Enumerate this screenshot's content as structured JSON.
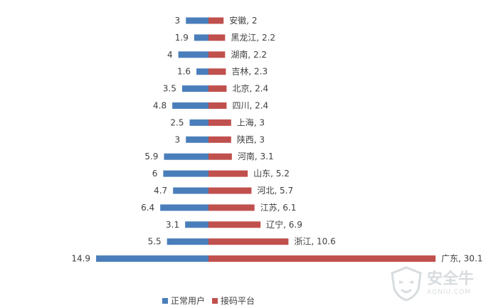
{
  "chart_data": {
    "type": "bar",
    "orientation": "horizontal-diverging",
    "categories": [
      "安徽",
      "黑龙江",
      "湖南",
      "吉林",
      "北京",
      "四川",
      "上海",
      "陕西",
      "河南",
      "山东",
      "河北",
      "江苏",
      "辽宁",
      "浙江",
      "广东"
    ],
    "series": [
      {
        "name": "正常用户",
        "values": [
          3,
          1.9,
          4,
          1.6,
          3.5,
          4.8,
          2.5,
          3,
          5.9,
          6,
          4.7,
          6.4,
          3.1,
          5.5,
          14.9
        ],
        "color": "#4a7ebb"
      },
      {
        "name": "接码平台",
        "values": [
          2,
          2.2,
          2.2,
          2.3,
          2.4,
          2.4,
          3,
          3,
          3.1,
          5.2,
          5.7,
          6.1,
          6.9,
          10.6,
          30.1
        ],
        "color": "#c0504d"
      }
    ],
    "right_labels": [
      "安徽, 2",
      "黑龙江, 2.2",
      "湖南, 2.2",
      "吉林, 2.3",
      "北京, 2.4",
      "四川, 2.4",
      "上海, 3",
      "陕西, 3",
      "河南, 3.1",
      "山东, 5.2",
      "河北, 5.7",
      "江苏, 6.1",
      "辽宁, 6.9",
      "浙江, 10.6",
      "广东, 30.1"
    ],
    "left_labels": [
      "3",
      "1.9",
      "4",
      "1.6",
      "3.5",
      "4.8",
      "2.5",
      "3",
      "5.9",
      "6",
      "4.7",
      "6.4",
      "3.1",
      "5.5",
      "14.9"
    ],
    "title": "",
    "xlabel": "",
    "ylabel": "",
    "grid": false,
    "legend": "bottom"
  },
  "legend": {
    "normal_label": "正常用户",
    "platform_label": "接码平台"
  },
  "watermark": {
    "title": "安全牛",
    "subtitle": "AQNIU.COM",
    "icon": "shield-face-icon"
  }
}
